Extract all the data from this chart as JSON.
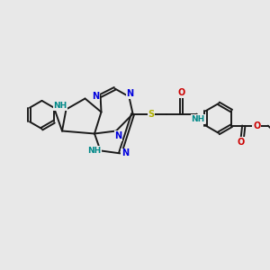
{
  "background_color": "#e8e8e8",
  "bond_color": "#1a1a1a",
  "blue": "#0000dd",
  "teal": "#008888",
  "red": "#cc0000",
  "yellow": "#b0b000",
  "lw": 1.4,
  "xlim": [
    0,
    10
  ],
  "ylim": [
    0,
    10
  ]
}
